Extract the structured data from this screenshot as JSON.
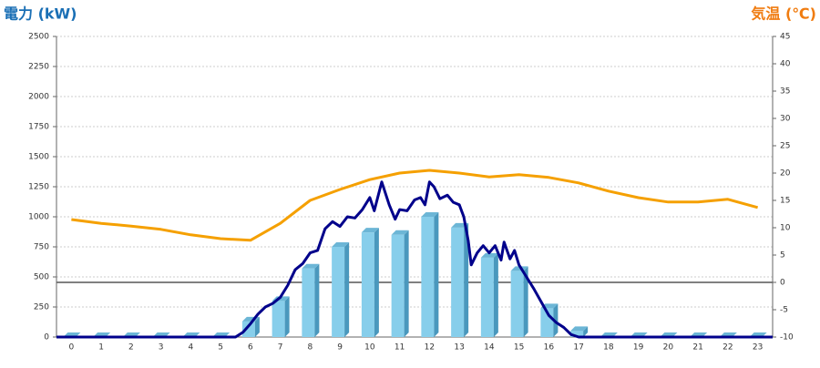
{
  "chart_data": {
    "type": "combo",
    "y_label": "電力 (kW)",
    "y2_label": "気温 (℃)",
    "categories": [
      "0",
      "1",
      "2",
      "3",
      "4",
      "5",
      "6",
      "7",
      "8",
      "9",
      "10",
      "11",
      "12",
      "13",
      "14",
      "15",
      "16",
      "17",
      "18",
      "19",
      "20",
      "21",
      "22",
      "23"
    ],
    "ylim": [
      0,
      2500
    ],
    "yticks": [
      0,
      250,
      500,
      750,
      1000,
      1250,
      1500,
      1750,
      2000,
      2250,
      2500
    ],
    "y2lim": [
      -10,
      45
    ],
    "y2ticks": [
      -10,
      -5,
      0,
      5,
      10,
      15,
      20,
      25,
      30,
      35,
      40,
      45
    ],
    "grid": true,
    "series": [
      {
        "type": "bar",
        "color": "#87ceeb",
        "values": [
          0,
          0,
          0,
          0,
          0,
          0,
          130,
          300,
          570,
          750,
          870,
          850,
          1000,
          910,
          660,
          550,
          240,
          50,
          0,
          0,
          0,
          0,
          0,
          0
        ]
      },
      {
        "type": "line",
        "color": "#00008b",
        "x": [
          -0.5,
          5.5,
          5.75,
          6,
          6.25,
          6.5,
          6.75,
          7,
          7.25,
          7.5,
          7.75,
          8,
          8.25,
          8.5,
          8.75,
          9,
          9.25,
          9.5,
          9.75,
          10,
          10.15,
          10.4,
          10.65,
          10.85,
          11,
          11.25,
          11.5,
          11.7,
          11.85,
          12,
          12.15,
          12.35,
          12.6,
          12.8,
          13,
          13.15,
          13.3,
          13.4,
          13.6,
          13.8,
          14,
          14.2,
          14.4,
          14.5,
          14.7,
          14.85,
          15,
          15.25,
          15.5,
          15.75,
          16,
          16.25,
          16.5,
          16.75,
          17,
          23.5
        ],
        "values": [
          0,
          0,
          40,
          110,
          190,
          250,
          280,
          330,
          430,
          560,
          610,
          700,
          720,
          900,
          960,
          920,
          1000,
          990,
          1060,
          1160,
          1050,
          1290,
          1100,
          980,
          1060,
          1050,
          1140,
          1160,
          1100,
          1290,
          1250,
          1150,
          1180,
          1120,
          1100,
          1000,
          800,
          600,
          700,
          760,
          700,
          760,
          640,
          790,
          650,
          720,
          600,
          500,
          400,
          290,
          180,
          120,
          80,
          20,
          0,
          0
        ]
      },
      {
        "type": "line",
        "axis": "y2",
        "color": "#f5a000",
        "values": [
          11.5,
          10.8,
          10.3,
          9.7,
          8.7,
          8.0,
          7.7,
          10.8,
          15,
          17,
          18.8,
          20,
          20.5,
          20,
          19.3,
          19.7,
          19.2,
          18.2,
          16.7,
          15.5,
          14.7,
          14.7,
          15.2,
          13.7
        ]
      }
    ]
  }
}
